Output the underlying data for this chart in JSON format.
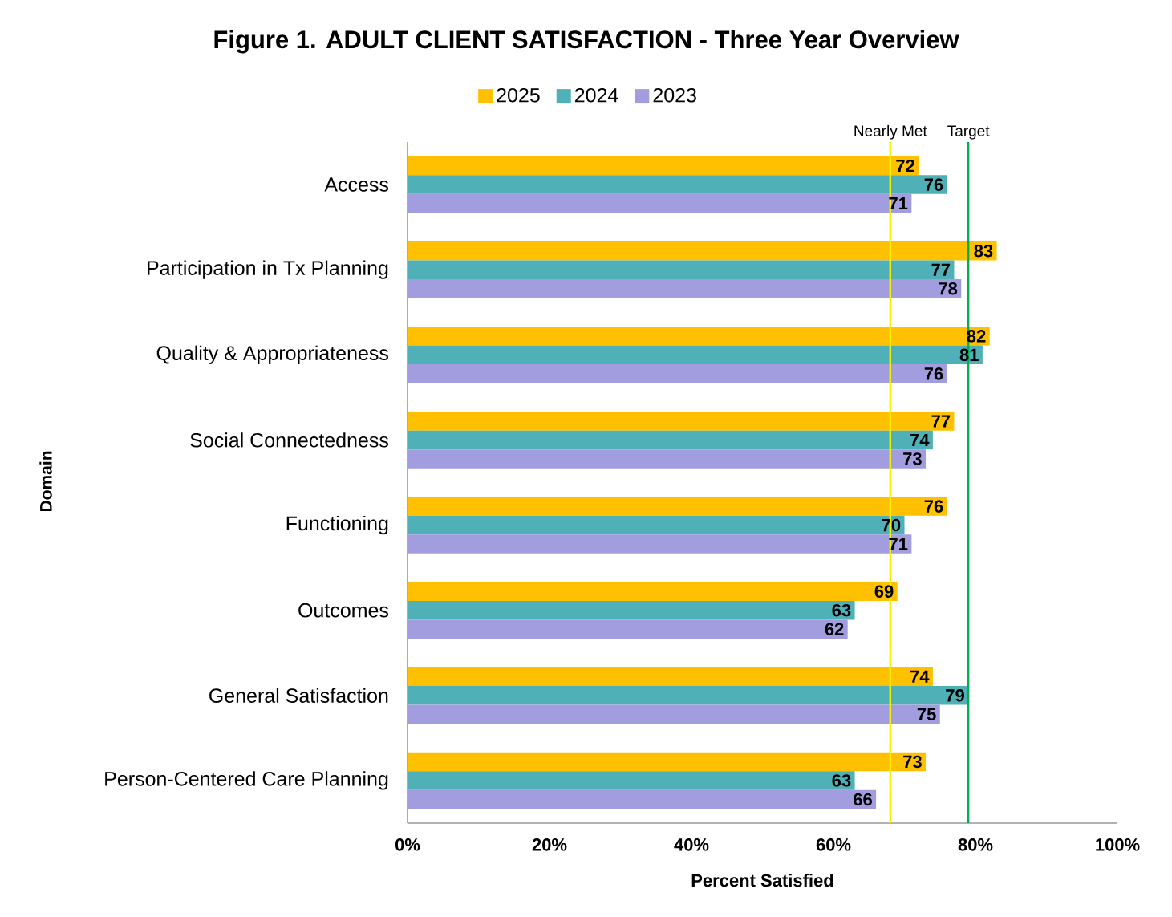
{
  "chart_data": {
    "type": "bar",
    "orientation": "horizontal",
    "title": "Figure 1. ADULT CLIENT SATISFACTION - Three Year Overview",
    "xlabel": "Percent Satisfied",
    "ylabel": "Domain",
    "categories": [
      "Access",
      "Participation in Tx Planning",
      "Quality & Appropriateness",
      "Social Connectedness",
      "Functioning",
      "Outcomes",
      "General Satisfaction",
      "Person-Centered Care Planning"
    ],
    "series": [
      {
        "name": "2025",
        "color": "#ffc000",
        "values": [
          72,
          83,
          82,
          77,
          76,
          69,
          74,
          73
        ]
      },
      {
        "name": "2024",
        "color": "#4fb1b7",
        "values": [
          76,
          77,
          81,
          74,
          70,
          63,
          79,
          63
        ]
      },
      {
        "name": "2023",
        "color": "#a29ddf",
        "values": [
          71,
          78,
          76,
          73,
          71,
          62,
          75,
          66
        ]
      }
    ],
    "xlim": [
      0,
      100
    ],
    "xticks": [
      {
        "value": 0,
        "label": "0%"
      },
      {
        "value": 20,
        "label": "20%"
      },
      {
        "value": 40,
        "label": "40%"
      },
      {
        "value": 60,
        "label": "60%"
      },
      {
        "value": 80,
        "label": "80%"
      },
      {
        "value": 100,
        "label": "100%"
      }
    ],
    "ref_lines": [
      {
        "axis": "x",
        "value": 68,
        "label": "Nearly Met",
        "color": "#f2f200"
      },
      {
        "axis": "x",
        "value": 79,
        "label": "Target",
        "color": "#00b050"
      }
    ],
    "data_labels": true,
    "legend": "top"
  }
}
